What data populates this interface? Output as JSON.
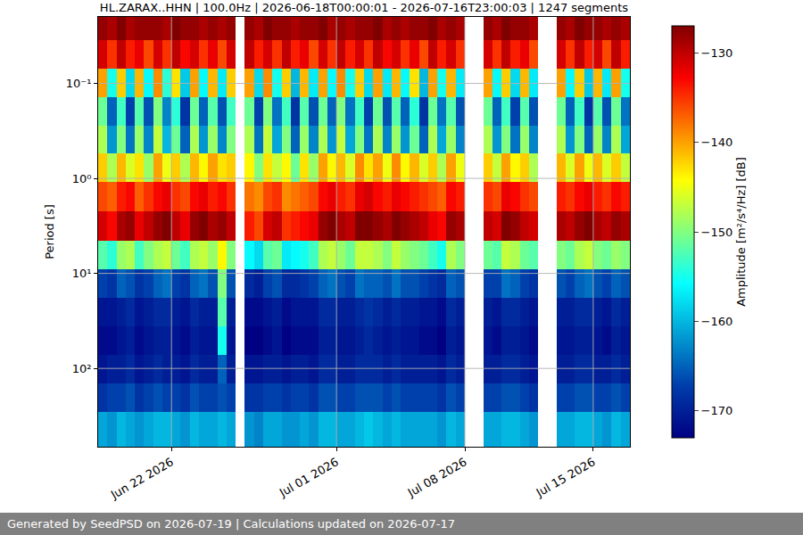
{
  "chart_data": {
    "type": "heatmap",
    "title": "HL.ZARAX..HHN | 100.0Hz | 2026-06-18T00:00:01 - 2026-07-16T23:00:03 | 1247 segments",
    "ylabel": "Period [s]",
    "log": "y",
    "grid": true,
    "x_bins": [
      "2026-06-18 00:00",
      "2026-06-18 12:00",
      "2026-06-19 00:00",
      "2026-06-19 12:00",
      "2026-06-20 00:00",
      "2026-06-20 12:00",
      "2026-06-21 00:00",
      "2026-06-21 12:00",
      "2026-06-22 00:00",
      "2026-06-22 12:00",
      "2026-06-23 00:00",
      "2026-06-23 12:00",
      "2026-06-24 00:00",
      "2026-06-24 12:00",
      "2026-06-25 00:00",
      "2026-06-25 12:00",
      "2026-06-26 00:00",
      "2026-06-26 12:00",
      "2026-06-27 00:00",
      "2026-06-27 12:00",
      "2026-06-28 00:00",
      "2026-06-28 12:00",
      "2026-06-29 00:00",
      "2026-06-29 12:00",
      "2026-06-30 00:00",
      "2026-06-30 12:00",
      "2026-07-01 00:00",
      "2026-07-01 12:00",
      "2026-07-02 00:00",
      "2026-07-02 12:00",
      "2026-07-03 00:00",
      "2026-07-03 12:00",
      "2026-07-04 00:00",
      "2026-07-04 12:00",
      "2026-07-05 00:00",
      "2026-07-05 12:00",
      "2026-07-06 00:00",
      "2026-07-06 12:00",
      "2026-07-07 00:00",
      "2026-07-07 12:00",
      "2026-07-08 00:00",
      "2026-07-08 12:00",
      "2026-07-09 00:00",
      "2026-07-09 12:00",
      "2026-07-10 00:00",
      "2026-07-10 12:00",
      "2026-07-11 00:00",
      "2026-07-11 12:00",
      "2026-07-12 00:00",
      "2026-07-12 12:00",
      "2026-07-13 00:00",
      "2026-07-13 12:00",
      "2026-07-14 00:00",
      "2026-07-14 12:00",
      "2026-07-15 00:00",
      "2026-07-15 12:00",
      "2026-07-16 00:00",
      "2026-07-16 12:00",
      "2026-07-17 00:00"
    ],
    "y_bins": [
      0.02,
      0.035,
      0.07,
      0.14,
      0.28,
      0.55,
      1.1,
      2.2,
      4.5,
      9,
      18,
      36,
      72,
      145,
      290,
      667
    ],
    "z": [
      [
        -128,
        -129,
        -127,
        -129,
        -128,
        -128,
        -128,
        -129,
        -127,
        -128,
        -128,
        -129,
        -128,
        -129,
        -128,
        null,
        -128,
        -129,
        -127,
        -128,
        -128,
        -129,
        -128,
        -128,
        -127,
        -129,
        -128,
        -129,
        -128,
        -128,
        -127,
        -129,
        -128,
        -129,
        -128,
        -128,
        -127,
        -129,
        -128,
        -129,
        null,
        null,
        -128,
        -129,
        -127,
        -128,
        -128,
        -129,
        null,
        null,
        -128,
        -129,
        -127,
        -128,
        -128,
        -129,
        -128,
        -129
      ],
      [
        -131,
        -135,
        -130,
        -134,
        -132,
        -136,
        -131,
        -135,
        -130,
        -133,
        -131,
        -135,
        -132,
        -136,
        -131,
        null,
        -130,
        -134,
        -131,
        -135,
        -130,
        -134,
        -132,
        -136,
        -131,
        -135,
        -130,
        -134,
        -131,
        -135,
        -130,
        -133,
        -131,
        -135,
        -132,
        -136,
        -130,
        -134,
        -131,
        -135,
        null,
        null,
        -131,
        -135,
        -130,
        -134,
        -132,
        -136,
        null,
        null,
        -131,
        -135,
        -130,
        -134,
        -131,
        -136,
        -130,
        -134
      ],
      [
        -140,
        -155,
        -142,
        -158,
        -141,
        -156,
        -139,
        -154,
        -143,
        -159,
        -140,
        -156,
        -141,
        -157,
        -142,
        null,
        -140,
        -158,
        -139,
        -155,
        -142,
        -160,
        -141,
        -157,
        -140,
        -156,
        -139,
        -155,
        -142,
        -158,
        -140,
        -157,
        -141,
        -156,
        -143,
        -160,
        -140,
        -155,
        -141,
        -157,
        null,
        null,
        -140,
        -156,
        -142,
        -158,
        -141,
        -157,
        null,
        null,
        -140,
        -156,
        -142,
        -159,
        -141,
        -157,
        -140,
        -155
      ],
      [
        -151,
        -165,
        -153,
        -167,
        -152,
        -166,
        -150,
        -163,
        -154,
        -168,
        -151,
        -165,
        -152,
        -166,
        -153,
        null,
        -151,
        -167,
        -150,
        -164,
        -153,
        -168,
        -152,
        -166,
        -151,
        -165,
        -150,
        -164,
        -153,
        -167,
        -151,
        -166,
        -152,
        -165,
        -154,
        -168,
        -151,
        -164,
        -152,
        -166,
        null,
        null,
        -151,
        -165,
        -153,
        -167,
        -152,
        -166,
        null,
        null,
        -151,
        -165,
        -153,
        -168,
        -152,
        -166,
        -151,
        -164
      ],
      [
        -148,
        -162,
        -150,
        -164,
        -149,
        -163,
        -147,
        -160,
        -151,
        -165,
        -148,
        -162,
        -149,
        -163,
        -150,
        null,
        -148,
        -164,
        -147,
        -161,
        -150,
        -165,
        -149,
        -163,
        -148,
        -162,
        -147,
        -161,
        -150,
        -164,
        -148,
        -163,
        -149,
        -162,
        -151,
        -165,
        -148,
        -161,
        -149,
        -163,
        null,
        null,
        -148,
        -162,
        -150,
        -164,
        -149,
        -163,
        null,
        null,
        -148,
        -162,
        -150,
        -165,
        -149,
        -163,
        -148,
        -161
      ],
      [
        -142,
        -148,
        -141,
        -146,
        -143,
        -149,
        -140,
        -145,
        -142,
        -148,
        -141,
        -144,
        -140,
        -143,
        -142,
        null,
        -144,
        -150,
        -143,
        -147,
        -144,
        -151,
        -143,
        -149,
        -140,
        -144,
        -141,
        -146,
        -139,
        -143,
        -140,
        -145,
        -139,
        -144,
        -141,
        -146,
        -142,
        -148,
        -140,
        -145,
        null,
        null,
        -142,
        -147,
        -140,
        -144,
        -142,
        -148,
        null,
        null,
        -141,
        -146,
        -140,
        -145,
        -141,
        -146,
        -142,
        -147
      ],
      [
        -136,
        -137,
        -134,
        -133,
        -137,
        -135,
        -133,
        -132,
        -135,
        -136,
        -133,
        -132,
        -134,
        -133,
        -135,
        null,
        -138,
        -139,
        -136,
        -135,
        -139,
        -138,
        -137,
        -136,
        -133,
        -132,
        -134,
        -135,
        -132,
        -131,
        -133,
        -134,
        -132,
        -133,
        -134,
        -135,
        -136,
        -137,
        -133,
        -134,
        null,
        null,
        -135,
        -136,
        -132,
        -133,
        -135,
        -136,
        null,
        null,
        -134,
        -135,
        -133,
        -132,
        -134,
        -135,
        -133,
        -134
      ],
      [
        -131,
        -133,
        -129,
        -128,
        -132,
        -130,
        -128,
        -127,
        -130,
        -132,
        -128,
        -127,
        -129,
        -128,
        -130,
        null,
        -134,
        -136,
        -131,
        -130,
        -135,
        -134,
        -133,
        -132,
        -128,
        -127,
        -129,
        -130,
        -127,
        -127,
        -128,
        -129,
        -127,
        -128,
        -129,
        -130,
        -132,
        -133,
        -128,
        -129,
        null,
        null,
        -130,
        -131,
        -127,
        -128,
        -130,
        -131,
        null,
        null,
        -129,
        -130,
        -128,
        -127,
        -129,
        -130,
        -128,
        -129
      ],
      [
        -152,
        -154,
        -149,
        -148,
        -153,
        -150,
        -148,
        -147,
        -151,
        -153,
        -148,
        -147,
        -149,
        -144,
        -150,
        null,
        -156,
        -158,
        -152,
        -151,
        -157,
        -156,
        -155,
        -153,
        -148,
        -147,
        -149,
        -151,
        -147,
        -147,
        -148,
        -150,
        -147,
        -149,
        -150,
        -151,
        -153,
        -155,
        -148,
        -150,
        null,
        null,
        -151,
        -152,
        -147,
        -148,
        -151,
        -152,
        null,
        null,
        -150,
        -151,
        -148,
        -147,
        -150,
        -151,
        -149,
        -150
      ],
      [
        -167,
        -168,
        -165,
        -166,
        -168,
        -167,
        -165,
        -164,
        -167,
        -168,
        -165,
        -164,
        -166,
        -150,
        -166,
        null,
        -169,
        -170,
        -167,
        -166,
        -169,
        -169,
        -168,
        -167,
        -165,
        -164,
        -166,
        -167,
        -164,
        -165,
        -165,
        -166,
        -164,
        -166,
        -166,
        -167,
        -168,
        -169,
        -165,
        -166,
        null,
        null,
        -167,
        -167,
        -164,
        -165,
        -167,
        -168,
        null,
        null,
        -166,
        -167,
        -165,
        -164,
        -166,
        -167,
        -165,
        -166
      ],
      [
        -171,
        -171,
        -170,
        -169,
        -171,
        -170,
        -169,
        -169,
        -170,
        -171,
        -169,
        -170,
        -170,
        -152,
        -170,
        null,
        -172,
        -172,
        -171,
        -170,
        -172,
        -171,
        -171,
        -171,
        -169,
        -169,
        -170,
        -170,
        -169,
        -168,
        -169,
        -170,
        -169,
        -170,
        -170,
        -171,
        -171,
        -172,
        -169,
        -170,
        null,
        null,
        -170,
        -171,
        -169,
        -169,
        -170,
        -171,
        null,
        null,
        -170,
        -170,
        -169,
        -169,
        -170,
        -171,
        -169,
        -170
      ],
      [
        -172,
        -172,
        -171,
        -170,
        -172,
        -171,
        -170,
        -170,
        -171,
        -172,
        -170,
        -171,
        -171,
        -155,
        -171,
        null,
        -173,
        -173,
        -172,
        -171,
        -173,
        -172,
        -172,
        -172,
        -170,
        -170,
        -171,
        -171,
        -170,
        -169,
        -170,
        -171,
        -170,
        -171,
        -171,
        -172,
        -172,
        -173,
        -170,
        -171,
        null,
        null,
        -171,
        -172,
        -170,
        -170,
        -171,
        -172,
        null,
        null,
        -171,
        -171,
        -170,
        -170,
        -171,
        -172,
        -170,
        -171
      ],
      [
        -171,
        -170,
        -170,
        -169,
        -171,
        -170,
        -169,
        -170,
        -170,
        -171,
        -169,
        -170,
        -170,
        -165,
        -170,
        null,
        -171,
        -171,
        -170,
        -170,
        -171,
        -170,
        -170,
        -171,
        -169,
        -169,
        -170,
        -170,
        -169,
        -169,
        -169,
        -170,
        -169,
        -170,
        -170,
        -170,
        -170,
        -171,
        -169,
        -170,
        null,
        null,
        -170,
        -170,
        -169,
        -169,
        -170,
        -171,
        null,
        null,
        -170,
        -170,
        -169,
        -169,
        -170,
        -170,
        -169,
        -170
      ],
      [
        -168,
        -167,
        -167,
        -166,
        -168,
        -167,
        -166,
        -167,
        -167,
        -168,
        -166,
        -167,
        -167,
        -166,
        -167,
        null,
        -168,
        -168,
        -167,
        -167,
        -168,
        -167,
        -167,
        -168,
        -166,
        -166,
        -167,
        -167,
        -166,
        -166,
        -166,
        -167,
        -166,
        -167,
        -167,
        -167,
        -167,
        -168,
        -166,
        -167,
        null,
        null,
        -167,
        -167,
        -166,
        -166,
        -167,
        -168,
        null,
        null,
        -167,
        -167,
        -166,
        -166,
        -167,
        -167,
        -166,
        -167
      ],
      [
        -161,
        -162,
        -160,
        -161,
        -162,
        -161,
        -160,
        -160,
        -161,
        -162,
        -160,
        -161,
        -161,
        -160,
        -161,
        null,
        -162,
        -163,
        -161,
        -161,
        -162,
        -162,
        -161,
        -162,
        -160,
        -160,
        -161,
        -161,
        -160,
        -159,
        -160,
        -161,
        -160,
        -161,
        -161,
        -161,
        -161,
        -162,
        -160,
        -161,
        null,
        null,
        -161,
        -161,
        -160,
        -160,
        -161,
        -162,
        null,
        null,
        -161,
        -161,
        -160,
        -160,
        -161,
        -162,
        -160,
        -161
      ]
    ],
    "xlim": [
      "2026-06-18 00:00",
      "2026-07-17 00:00"
    ],
    "xticks": [
      {
        "value": "2026-06-22",
        "label": "Jun 22 2026"
      },
      {
        "value": "2026-07-01",
        "label": "Jul 01 2026"
      },
      {
        "value": "2026-07-08",
        "label": "Jul 08 2026"
      },
      {
        "value": "2026-07-15",
        "label": "Jul 15 2026"
      }
    ],
    "ylim": [
      667,
      0.02
    ],
    "yticks": [
      {
        "value": 0.1,
        "label": "10⁻¹"
      },
      {
        "value": 1,
        "label": "10⁰"
      },
      {
        "value": 10,
        "label": "10¹"
      },
      {
        "value": 100,
        "label": "10²"
      }
    ],
    "colorbar_label": "Amplitude [m²/s⁴/Hz] [dB]",
    "zlim": [
      -173,
      -127
    ],
    "zticks": [
      -170,
      -160,
      -150,
      -140,
      -130
    ],
    "footer": "Generated by SeedPSD on 2026-07-19 | Calculations updated on 2026-07-17"
  }
}
